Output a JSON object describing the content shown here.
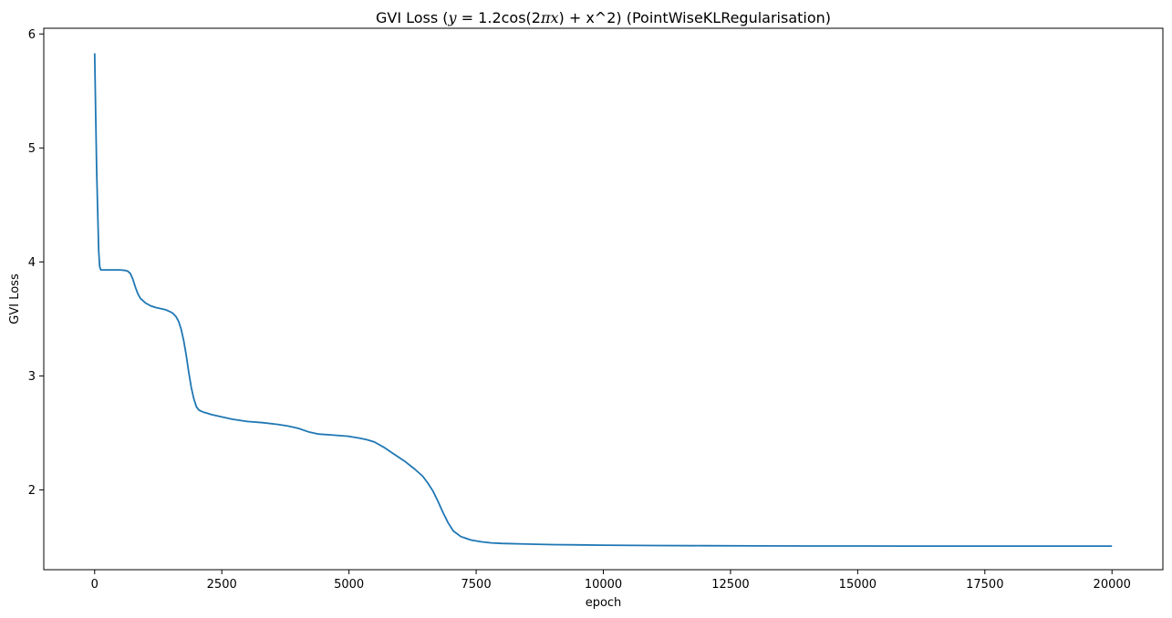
{
  "chart_data": {
    "type": "line",
    "title": "GVI Loss ($y=1.2\\cos(2\\pi x)$ + x^2) (PointWiseKLRegularisation)",
    "title_parts": {
      "prefix": "GVI Loss (",
      "math_y": "y",
      "math_eq": " = 1.2cos(2",
      "math_pi": "π",
      "math_x": "x",
      "suffix": ") + x^2) (PointWiseKLRegularisation)"
    },
    "xlabel": "epoch",
    "ylabel": "GVI Loss",
    "xlim": [
      -1000,
      21000
    ],
    "ylim": [
      1.3,
      6.05
    ],
    "xticks": [
      0,
      2500,
      5000,
      7500,
      10000,
      12500,
      15000,
      17500,
      20000
    ],
    "yticks": [
      2,
      3,
      4,
      5,
      6
    ],
    "grid": false,
    "color": "#1f77b4",
    "series": [
      {
        "x": [
          0,
          20,
          40,
          60,
          80,
          100,
          120,
          150,
          200,
          300,
          400,
          500,
          600,
          650,
          700,
          750,
          800,
          850,
          900,
          950,
          1000,
          1100,
          1200,
          1300,
          1400,
          1500,
          1550,
          1600,
          1650,
          1700,
          1750,
          1800,
          1850,
          1900,
          1950,
          2000,
          2050,
          2100,
          2150,
          2200,
          2300,
          2500,
          2700,
          3000,
          3300,
          3600,
          3800,
          4000,
          4200,
          4400,
          4700,
          5000,
          5200,
          5350,
          5500,
          5700,
          5900,
          6100,
          6300,
          6450,
          6550,
          6650,
          6750,
          6850,
          6950,
          7050,
          7200,
          7400,
          7600,
          7800,
          8000,
          8500,
          9000,
          10000,
          11000,
          12000,
          13000,
          14000,
          15000,
          16000,
          17000,
          18000,
          19000,
          20000
        ],
        "y": [
          5.83,
          5.3,
          4.8,
          4.45,
          4.1,
          3.96,
          3.93,
          3.93,
          3.93,
          3.93,
          3.93,
          3.93,
          3.925,
          3.92,
          3.9,
          3.85,
          3.78,
          3.72,
          3.68,
          3.66,
          3.64,
          3.615,
          3.6,
          3.59,
          3.58,
          3.56,
          3.545,
          3.52,
          3.48,
          3.41,
          3.31,
          3.18,
          3.03,
          2.9,
          2.8,
          2.73,
          2.7,
          2.69,
          2.68,
          2.675,
          2.66,
          2.64,
          2.62,
          2.6,
          2.59,
          2.575,
          2.56,
          2.54,
          2.51,
          2.49,
          2.48,
          2.47,
          2.455,
          2.44,
          2.42,
          2.37,
          2.31,
          2.25,
          2.18,
          2.12,
          2.06,
          1.99,
          1.9,
          1.8,
          1.71,
          1.64,
          1.59,
          1.56,
          1.545,
          1.535,
          1.53,
          1.525,
          1.52,
          1.515,
          1.512,
          1.51,
          1.509,
          1.508,
          1.508,
          1.507,
          1.507,
          1.507,
          1.507,
          1.507
        ]
      }
    ]
  }
}
